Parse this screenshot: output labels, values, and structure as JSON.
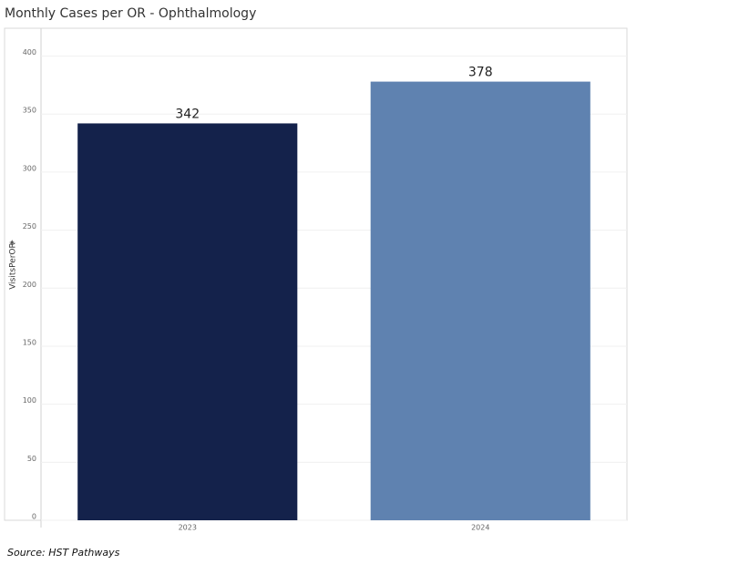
{
  "chart_data": {
    "type": "bar",
    "title": "Monthly Cases per OR - Ophthalmology",
    "y_label": "VisitsPerOR",
    "categories": [
      "2023",
      "2024"
    ],
    "values": [
      342,
      378
    ],
    "colors": [
      "#14224b",
      "#5f82b0"
    ],
    "ylim": [
      0,
      424
    ],
    "yticks": [
      0,
      50,
      100,
      150,
      200,
      250,
      300,
      350,
      400
    ],
    "grid": true,
    "source": "Source: HST Pathways"
  }
}
